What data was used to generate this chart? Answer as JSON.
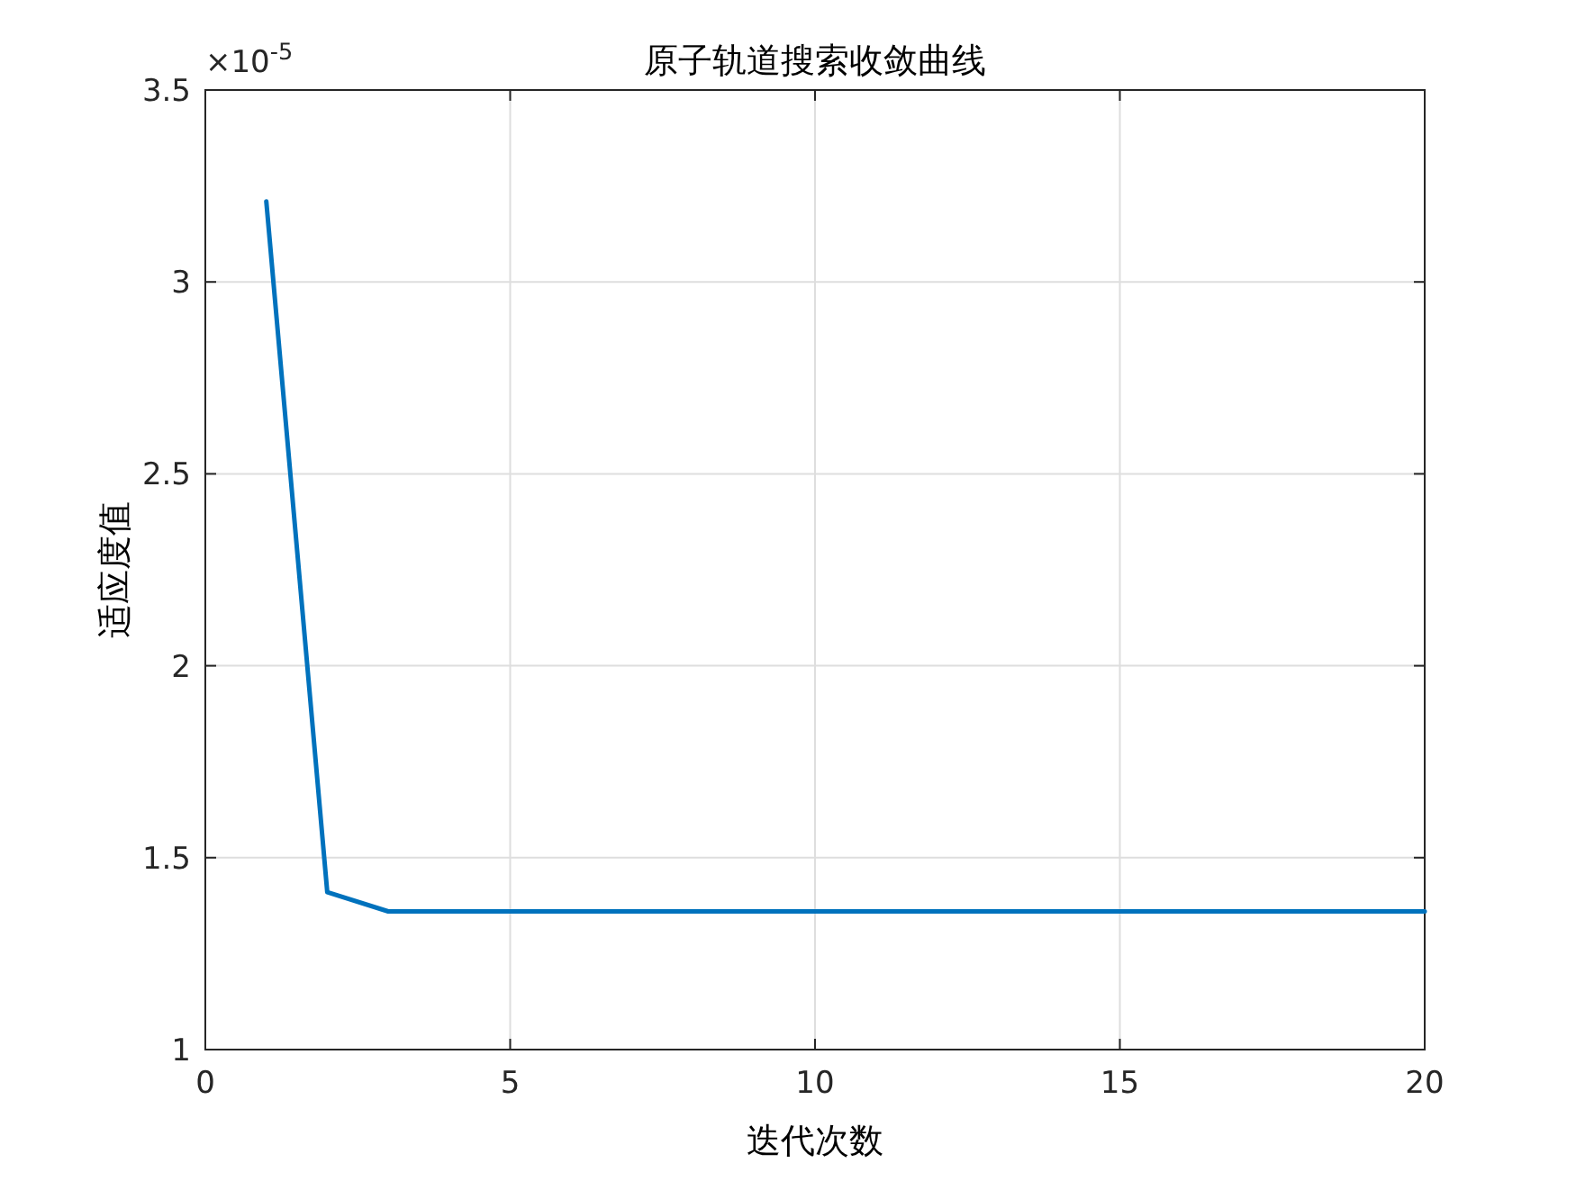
{
  "chart_data": {
    "type": "line",
    "title": "原子轨道搜索收敛曲线",
    "xlabel": "迭代次数",
    "ylabel": "适应度值",
    "x": [
      1,
      2,
      3,
      4,
      5,
      6,
      7,
      8,
      9,
      10,
      11,
      12,
      13,
      14,
      15,
      16,
      17,
      18,
      19,
      20
    ],
    "series": [
      {
        "color": "#0072bd",
        "values": [
          3.21,
          1.41,
          1.36,
          1.36,
          1.36,
          1.36,
          1.36,
          1.36,
          1.36,
          1.36,
          1.36,
          1.36,
          1.36,
          1.36,
          1.36,
          1.36,
          1.36,
          1.36,
          1.36,
          1.36
        ]
      }
    ],
    "xlim": [
      0,
      20
    ],
    "ylim": [
      1,
      3.5
    ],
    "xticks": [
      0,
      5,
      10,
      15,
      20
    ],
    "yticks": [
      1,
      1.5,
      2,
      2.5,
      3,
      3.5
    ],
    "grid": true,
    "line_style": "solid",
    "annotations": [
      "×10$^{-5}$"
    ]
  }
}
